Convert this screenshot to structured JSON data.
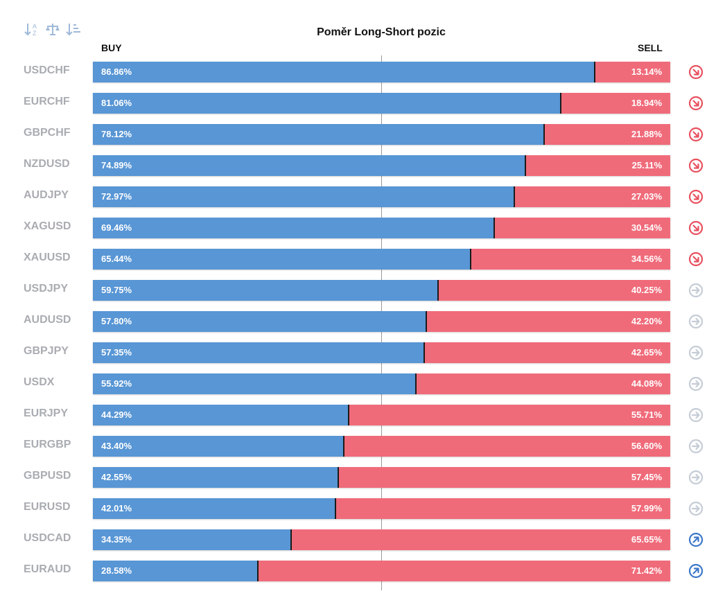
{
  "title": "Poměr Long-Short pozic",
  "toolbar": {
    "icons": [
      "sort-alpha-icon",
      "balance-scale-icon",
      "sort-amount-icon"
    ]
  },
  "headers": {
    "buy": "BUY",
    "sell": "SELL"
  },
  "colors": {
    "buy": "#5896d5",
    "sell": "#f06b7a",
    "symbol_text": "#a9acb1",
    "trend_down": "#e8515f",
    "trend_neutral": "#c5ccd6",
    "trend_up": "#3d78c9"
  },
  "chart_data": {
    "type": "bar",
    "orientation": "horizontal",
    "stacked": true,
    "categories": [
      "USDCHF",
      "EURCHF",
      "GBPCHF",
      "NZDUSD",
      "AUDJPY",
      "XAGUSD",
      "XAUUSD",
      "USDJPY",
      "AUDUSD",
      "GBPJPY",
      "USDX",
      "EURJPY",
      "EURGBP",
      "GBPUSD",
      "EURUSD",
      "USDCAD",
      "EURAUD"
    ],
    "series": [
      {
        "name": "BUY",
        "values": [
          86.86,
          81.06,
          78.12,
          74.89,
          72.97,
          69.46,
          65.44,
          59.75,
          57.8,
          57.35,
          55.92,
          44.29,
          43.4,
          42.55,
          42.01,
          34.35,
          28.58
        ]
      },
      {
        "name": "SELL",
        "values": [
          13.14,
          18.94,
          21.88,
          25.11,
          27.03,
          30.54,
          34.56,
          40.25,
          42.2,
          42.65,
          44.08,
          55.71,
          56.6,
          57.45,
          57.99,
          65.65,
          71.42
        ]
      }
    ],
    "buy_labels": [
      "86.86%",
      "81.06%",
      "78.12%",
      "74.89%",
      "72.97%",
      "69.46%",
      "65.44%",
      "59.75%",
      "57.80%",
      "57.35%",
      "55.92%",
      "44.29%",
      "43.40%",
      "42.55%",
      "42.01%",
      "34.35%",
      "28.58%"
    ],
    "sell_labels": [
      "13.14%",
      "18.94%",
      "21.88%",
      "25.11%",
      "27.03%",
      "30.54%",
      "34.56%",
      "40.25%",
      "42.20%",
      "42.65%",
      "44.08%",
      "55.71%",
      "56.60%",
      "57.45%",
      "57.99%",
      "65.65%",
      "71.42%"
    ],
    "trends": [
      "down",
      "down",
      "down",
      "down",
      "down",
      "down",
      "down",
      "neutral",
      "neutral",
      "neutral",
      "neutral",
      "neutral",
      "neutral",
      "neutral",
      "neutral",
      "up",
      "up"
    ],
    "xlim": [
      0,
      100
    ],
    "reference_line": 50,
    "grid": false
  }
}
